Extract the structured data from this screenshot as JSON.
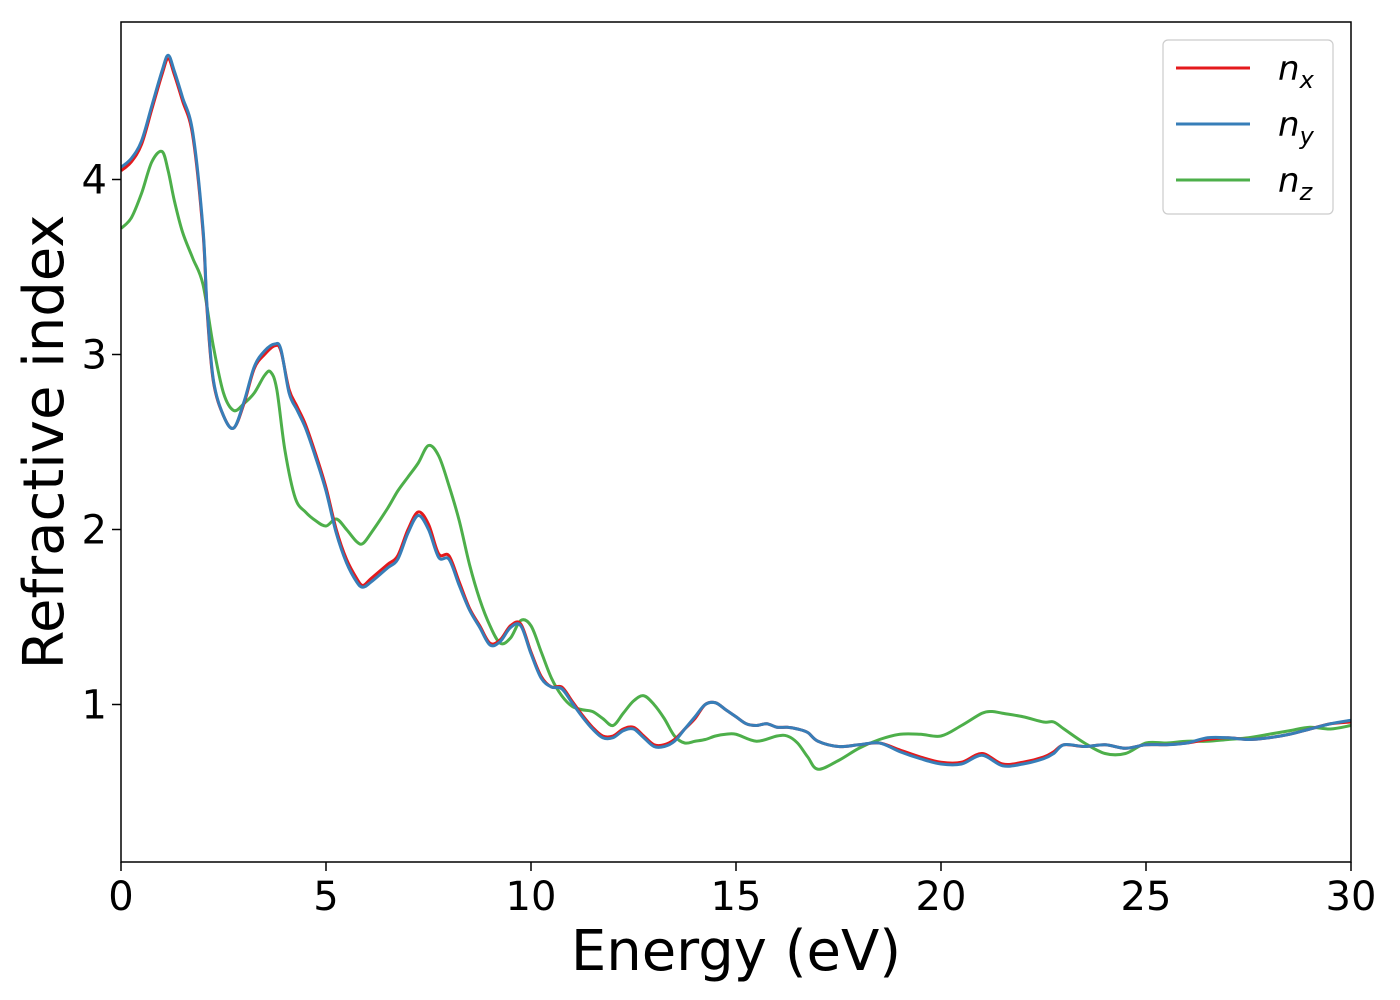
{
  "chart_data": {
    "type": "line",
    "title": "",
    "xlabel": "Energy (eV)",
    "ylabel": "Refractive index",
    "xlim": [
      0,
      30
    ],
    "ylim": [
      0.1,
      4.9
    ],
    "grid": false,
    "legend_placement": "top-right",
    "x_ticks": [
      {
        "value": 0,
        "label": "0"
      },
      {
        "value": 5,
        "label": "5"
      },
      {
        "value": 10,
        "label": "10"
      },
      {
        "value": 15,
        "label": "15"
      },
      {
        "value": 20,
        "label": "20"
      },
      {
        "value": 25,
        "label": "25"
      },
      {
        "value": 30,
        "label": "30"
      }
    ],
    "y_ticks": [
      {
        "value": 1,
        "label": "1"
      },
      {
        "value": 2,
        "label": "2"
      },
      {
        "value": 3,
        "label": "3"
      },
      {
        "value": 4,
        "label": "4"
      }
    ],
    "series": [
      {
        "name": "n_x",
        "label_main": "n",
        "label_sub": "x",
        "color": "#e41a1c",
        "x": [
          0,
          0.25,
          0.5,
          0.75,
          1,
          1.15,
          1.3,
          1.5,
          1.75,
          2,
          2.1,
          2.25,
          2.5,
          2.75,
          3,
          3.25,
          3.5,
          3.75,
          3.9,
          4.1,
          4.3,
          4.5,
          4.75,
          5,
          5.25,
          5.5,
          5.75,
          5.9,
          6.1,
          6.5,
          6.75,
          7,
          7.25,
          7.5,
          7.75,
          8,
          8.25,
          8.5,
          8.75,
          9,
          9.25,
          9.5,
          9.75,
          10,
          10.25,
          10.5,
          10.75,
          11,
          11.25,
          11.5,
          11.75,
          12,
          12.25,
          12.5,
          12.75,
          13,
          13.25,
          13.5,
          13.75,
          14,
          14.25,
          14.5,
          14.75,
          15,
          15.25,
          15.5,
          15.75,
          16,
          16.25,
          16.5,
          16.75,
          17,
          17.5,
          18,
          18.5,
          19,
          19.5,
          20,
          20.5,
          21,
          21.5,
          22,
          22.5,
          22.75,
          23,
          23.5,
          24,
          24.5,
          25,
          25.5,
          26,
          26.5,
          27,
          27.5,
          28,
          28.5,
          29,
          29.5,
          30
        ],
        "values": [
          4.05,
          4.1,
          4.2,
          4.4,
          4.6,
          4.69,
          4.6,
          4.45,
          4.25,
          3.7,
          3.25,
          2.85,
          2.65,
          2.58,
          2.72,
          2.92,
          3.0,
          3.05,
          3.02,
          2.8,
          2.7,
          2.6,
          2.43,
          2.24,
          2.0,
          1.83,
          1.72,
          1.68,
          1.72,
          1.8,
          1.85,
          2.0,
          2.1,
          2.03,
          1.86,
          1.85,
          1.7,
          1.55,
          1.45,
          1.35,
          1.37,
          1.45,
          1.46,
          1.3,
          1.16,
          1.1,
          1.1,
          1.02,
          0.94,
          0.87,
          0.82,
          0.82,
          0.86,
          0.87,
          0.82,
          0.77,
          0.77,
          0.8,
          0.86,
          0.92,
          1.0,
          1.01,
          0.97,
          0.93,
          0.89,
          0.88,
          0.89,
          0.87,
          0.87,
          0.86,
          0.84,
          0.79,
          0.76,
          0.77,
          0.78,
          0.74,
          0.7,
          0.67,
          0.67,
          0.72,
          0.66,
          0.67,
          0.7,
          0.73,
          0.77,
          0.76,
          0.77,
          0.75,
          0.77,
          0.77,
          0.78,
          0.8,
          0.81,
          0.8,
          0.81,
          0.83,
          0.86,
          0.89,
          0.9
        ],
        "__note": ""
      },
      {
        "name": "n_y",
        "label_main": "n",
        "label_sub": "y",
        "color": "#377eb8",
        "x": [
          0,
          0.25,
          0.5,
          0.75,
          1,
          1.15,
          1.3,
          1.5,
          1.75,
          2,
          2.1,
          2.25,
          2.5,
          2.75,
          3,
          3.25,
          3.5,
          3.75,
          3.9,
          4.1,
          4.3,
          4.5,
          4.75,
          5,
          5.25,
          5.5,
          5.75,
          5.9,
          6.1,
          6.5,
          6.75,
          7,
          7.25,
          7.5,
          7.75,
          8,
          8.25,
          8.5,
          8.75,
          9,
          9.25,
          9.5,
          9.75,
          10,
          10.25,
          10.5,
          10.75,
          11,
          11.25,
          11.5,
          11.75,
          12,
          12.25,
          12.5,
          12.75,
          13,
          13.25,
          13.5,
          13.75,
          14,
          14.25,
          14.5,
          14.75,
          15,
          15.25,
          15.5,
          15.75,
          16,
          16.25,
          16.5,
          16.75,
          17,
          17.5,
          18,
          18.5,
          19,
          19.5,
          20,
          20.5,
          21,
          21.5,
          22,
          22.5,
          22.75,
          23,
          23.5,
          24,
          24.5,
          25,
          25.5,
          26,
          26.5,
          27,
          27.5,
          28,
          28.5,
          29,
          29.5,
          30
        ],
        "values": [
          4.07,
          4.12,
          4.22,
          4.42,
          4.62,
          4.71,
          4.62,
          4.47,
          4.27,
          3.72,
          3.27,
          2.86,
          2.65,
          2.58,
          2.73,
          2.93,
          3.02,
          3.06,
          3.03,
          2.78,
          2.68,
          2.58,
          2.41,
          2.22,
          1.98,
          1.81,
          1.7,
          1.67,
          1.7,
          1.78,
          1.83,
          1.98,
          2.08,
          2.0,
          1.84,
          1.83,
          1.68,
          1.54,
          1.44,
          1.34,
          1.36,
          1.44,
          1.45,
          1.29,
          1.15,
          1.1,
          1.09,
          1.01,
          0.93,
          0.86,
          0.81,
          0.81,
          0.85,
          0.86,
          0.81,
          0.76,
          0.76,
          0.79,
          0.86,
          0.93,
          1.0,
          1.01,
          0.97,
          0.93,
          0.89,
          0.88,
          0.89,
          0.87,
          0.87,
          0.86,
          0.84,
          0.79,
          0.76,
          0.77,
          0.78,
          0.73,
          0.69,
          0.66,
          0.66,
          0.71,
          0.65,
          0.66,
          0.69,
          0.72,
          0.77,
          0.76,
          0.77,
          0.75,
          0.77,
          0.77,
          0.78,
          0.81,
          0.81,
          0.8,
          0.81,
          0.83,
          0.86,
          0.89,
          0.91
        ]
      },
      {
        "name": "n_z",
        "label_main": "n",
        "label_sub": "z",
        "color": "#4daf4a",
        "x": [
          0,
          0.25,
          0.5,
          0.75,
          1,
          1.15,
          1.3,
          1.5,
          1.75,
          2,
          2.25,
          2.5,
          2.75,
          3,
          3.25,
          3.5,
          3.65,
          3.8,
          4,
          4.25,
          4.5,
          4.75,
          5,
          5.25,
          5.5,
          5.75,
          5.9,
          6.1,
          6.5,
          6.75,
          7,
          7.25,
          7.5,
          7.75,
          8,
          8.25,
          8.5,
          8.75,
          9,
          9.25,
          9.5,
          9.75,
          10,
          10.25,
          10.5,
          10.75,
          11,
          11.25,
          11.5,
          11.75,
          12,
          12.25,
          12.5,
          12.75,
          13,
          13.25,
          13.5,
          13.75,
          14,
          14.25,
          14.5,
          14.75,
          15,
          15.5,
          16,
          16.25,
          16.5,
          16.75,
          17,
          17.5,
          18,
          18.5,
          19,
          19.5,
          20,
          20.5,
          21,
          21.25,
          21.5,
          22,
          22.5,
          22.75,
          23,
          23.5,
          24,
          24.5,
          25,
          25.5,
          26,
          26.5,
          27,
          27.5,
          28,
          28.5,
          29,
          29.5,
          30
        ],
        "values": [
          3.72,
          3.78,
          3.92,
          4.1,
          4.16,
          4.05,
          3.88,
          3.7,
          3.55,
          3.4,
          3.05,
          2.78,
          2.68,
          2.72,
          2.78,
          2.88,
          2.9,
          2.8,
          2.45,
          2.18,
          2.1,
          2.05,
          2.02,
          2.06,
          2.0,
          1.93,
          1.92,
          1.98,
          2.12,
          2.22,
          2.3,
          2.38,
          2.48,
          2.42,
          2.25,
          2.05,
          1.8,
          1.6,
          1.45,
          1.35,
          1.38,
          1.48,
          1.45,
          1.3,
          1.15,
          1.05,
          0.99,
          0.97,
          0.96,
          0.92,
          0.88,
          0.95,
          1.02,
          1.05,
          1.0,
          0.92,
          0.82,
          0.78,
          0.79,
          0.8,
          0.82,
          0.83,
          0.83,
          0.79,
          0.82,
          0.82,
          0.78,
          0.7,
          0.63,
          0.68,
          0.75,
          0.8,
          0.83,
          0.83,
          0.82,
          0.88,
          0.95,
          0.96,
          0.95,
          0.93,
          0.9,
          0.9,
          0.86,
          0.78,
          0.72,
          0.72,
          0.78,
          0.78,
          0.79,
          0.79,
          0.8,
          0.81,
          0.83,
          0.85,
          0.87,
          0.86,
          0.88
        ]
      }
    ]
  }
}
